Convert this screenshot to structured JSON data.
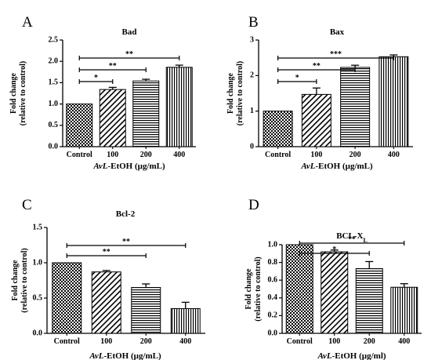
{
  "chart_data": [
    {
      "type": "bar",
      "panel_label": "A",
      "title": "Bad",
      "title_sub": "",
      "ylabel": [
        "Fold change",
        "(relative to control)"
      ],
      "xlabel_italic": "AvL",
      "xlabel_rest": "-EtOH (µg/mL)",
      "categories": [
        "Control",
        "100",
        "200",
        "400"
      ],
      "values": [
        1.0,
        1.34,
        1.54,
        1.86
      ],
      "errors": [
        0.0,
        0.05,
        0.04,
        0.05
      ],
      "ylim": [
        0,
        2.5
      ],
      "yticks": [
        "0.0",
        "0.5",
        "1.0",
        "1.5",
        "2.0",
        "2.5"
      ],
      "significance": [
        {
          "from": 0,
          "to": 1,
          "label": "*"
        },
        {
          "from": 0,
          "to": 2,
          "label": "**"
        },
        {
          "from": 0,
          "to": 3,
          "label": "**"
        }
      ]
    },
    {
      "type": "bar",
      "panel_label": "B",
      "title": "Bax",
      "title_sub": "",
      "ylabel": [
        "Fold change",
        "(relative to control)"
      ],
      "xlabel_italic": "AvL",
      "xlabel_rest": "-EtOH (µg/mL)",
      "categories": [
        "Control",
        "100",
        "200",
        "400"
      ],
      "values": [
        1.0,
        1.47,
        2.23,
        2.53
      ],
      "errors": [
        0.0,
        0.18,
        0.06,
        0.05
      ],
      "ylim": [
        0,
        3
      ],
      "yticks": [
        "0",
        "1",
        "2",
        "3"
      ],
      "significance": [
        {
          "from": 0,
          "to": 1,
          "label": "*"
        },
        {
          "from": 0,
          "to": 2,
          "label": "**"
        },
        {
          "from": 0,
          "to": 3,
          "label": "***"
        }
      ]
    },
    {
      "type": "bar",
      "panel_label": "C",
      "title": "Bcl-2",
      "title_sub": "",
      "ylabel": [
        "Fold change",
        "(relative to control)"
      ],
      "xlabel_italic": "AvL",
      "xlabel_rest": "-EtOH (µg/mL)",
      "categories": [
        "Control",
        "100",
        "200",
        "400"
      ],
      "values": [
        1.0,
        0.87,
        0.65,
        0.35
      ],
      "errors": [
        0.0,
        0.02,
        0.05,
        0.09
      ],
      "ylim": [
        0,
        1.5
      ],
      "yticks": [
        "0.0",
        "0.5",
        "1.0",
        "1.5"
      ],
      "significance": [
        {
          "from": 0,
          "to": 2,
          "label": "**"
        },
        {
          "from": 0,
          "to": 3,
          "label": "**"
        }
      ]
    },
    {
      "type": "bar",
      "panel_label": "D",
      "title": "BCL-X",
      "title_sub": "L",
      "ylabel": [
        "Fold change",
        "(relative to control)"
      ],
      "xlabel_italic": "AvL",
      "xlabel_rest": "-EtOH (µg/ml)",
      "categories": [
        "Control",
        "100",
        "200",
        "400"
      ],
      "values": [
        1.0,
        0.92,
        0.73,
        0.52
      ],
      "errors": [
        0.0,
        0.02,
        0.08,
        0.04
      ],
      "ylim": [
        0,
        1.0
      ],
      "yticks": [
        "0.0",
        "0.2",
        "0.4",
        "0.6",
        "0.8",
        "1.0"
      ],
      "significance": [
        {
          "from": 0,
          "to": 2,
          "label": "*"
        },
        {
          "from": 0,
          "to": 3,
          "label": "**"
        }
      ]
    }
  ]
}
